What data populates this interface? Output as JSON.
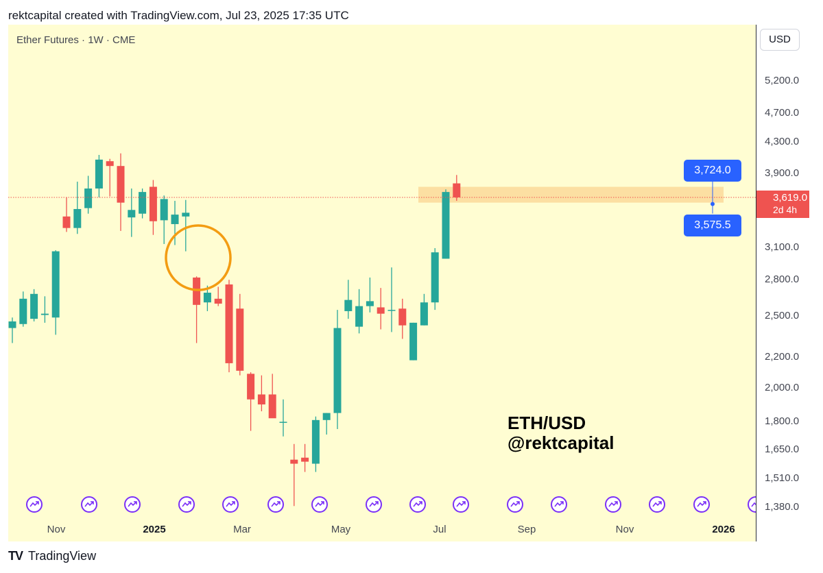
{
  "header": {
    "text": "rektcapital created with TradingView.com, Jul 23, 2025 17:35 UTC"
  },
  "symbol": {
    "text": "Ether Futures · 1W · CME"
  },
  "currency_button": {
    "label": "USD"
  },
  "price_axis": {
    "ticks": [
      "5,200.0",
      "4,700.0",
      "4,300.0",
      "3,900.0",
      "3,100.0",
      "2,800.0",
      "2,500.0",
      "2,200.0",
      "2,000.0",
      "1,800.0",
      "1,650.0",
      "1,510.0",
      "1,380.0"
    ]
  },
  "time_axis": {
    "labels": [
      "Nov",
      "2025",
      "Mar",
      "May",
      "Jul",
      "Sep",
      "Nov",
      "2026"
    ]
  },
  "last_price": {
    "price": "3,619.0",
    "countdown": "2d 4h"
  },
  "range_tags": {
    "upper": "3,724.0",
    "lower": "3,575.5"
  },
  "annotation": {
    "line1": "ETH/USD",
    "line2": "@rektcapital"
  },
  "footer": {
    "logo_mark": "TV",
    "brand": "TradingView"
  },
  "colors": {
    "up": "#26a69a",
    "down": "#ef5350",
    "background": "#fffdd2",
    "zone": "#fcd99a",
    "circle": "#f39c12",
    "marker": "#7b2ff7",
    "tag": "#2962ff"
  },
  "chart_data": {
    "type": "candlestick",
    "title": "Ether Futures · 1W · CME",
    "scale": "log",
    "ylim": [
      1310,
      5600
    ],
    "x_axis_labels": [
      "Nov",
      "2025",
      "Mar",
      "May",
      "Jul",
      "Sep",
      "Nov",
      "2026"
    ],
    "candles": [
      {
        "week": 1,
        "open": 2410,
        "high": 2490,
        "low": 2300,
        "close": 2460
      },
      {
        "week": 2,
        "open": 2440,
        "high": 2700,
        "low": 2420,
        "close": 2640
      },
      {
        "week": 3,
        "open": 2480,
        "high": 2720,
        "low": 2460,
        "close": 2680
      },
      {
        "week": 4,
        "open": 2510,
        "high": 2660,
        "low": 2450,
        "close": 2520
      },
      {
        "week": 5,
        "open": 2490,
        "high": 3070,
        "low": 2360,
        "close": 3060
      },
      {
        "week": 6,
        "open": 3410,
        "high": 3620,
        "low": 3250,
        "close": 3290
      },
      {
        "week": 7,
        "open": 3290,
        "high": 3800,
        "low": 3230,
        "close": 3490
      },
      {
        "week": 8,
        "open": 3500,
        "high": 3870,
        "low": 3440,
        "close": 3720
      },
      {
        "week": 9,
        "open": 3720,
        "high": 4130,
        "low": 3620,
        "close": 4070
      },
      {
        "week": 10,
        "open": 4050,
        "high": 4080,
        "low": 3630,
        "close": 3990
      },
      {
        "week": 11,
        "open": 3990,
        "high": 4150,
        "low": 3260,
        "close": 3560
      },
      {
        "week": 12,
        "open": 3400,
        "high": 3720,
        "low": 3200,
        "close": 3480
      },
      {
        "week": 13,
        "open": 3440,
        "high": 3720,
        "low": 3390,
        "close": 3680
      },
      {
        "week": 14,
        "open": 3740,
        "high": 3820,
        "low": 3220,
        "close": 3360
      },
      {
        "week": 15,
        "open": 3370,
        "high": 3640,
        "low": 3130,
        "close": 3600
      },
      {
        "week": 16,
        "open": 3330,
        "high": 3580,
        "low": 3120,
        "close": 3430
      },
      {
        "week": 17,
        "open": 3410,
        "high": 3590,
        "low": 3060,
        "close": 3450
      },
      {
        "week": 18,
        "open": 2820,
        "high": 2830,
        "low": 2300,
        "close": 2590
      },
      {
        "week": 19,
        "open": 2610,
        "high": 2750,
        "low": 2540,
        "close": 2690
      },
      {
        "week": 20,
        "open": 2640,
        "high": 2740,
        "low": 2580,
        "close": 2600
      },
      {
        "week": 21,
        "open": 2760,
        "high": 2800,
        "low": 2100,
        "close": 2160
      },
      {
        "week": 22,
        "open": 2560,
        "high": 2680,
        "low": 2080,
        "close": 2110
      },
      {
        "week": 23,
        "open": 2090,
        "high": 2100,
        "low": 1750,
        "close": 1930
      },
      {
        "week": 24,
        "open": 1960,
        "high": 2080,
        "low": 1860,
        "close": 1900
      },
      {
        "week": 25,
        "open": 1960,
        "high": 2090,
        "low": 1830,
        "close": 1820
      },
      {
        "week": 26,
        "open": 1800,
        "high": 1930,
        "low": 1720,
        "close": 1800
      },
      {
        "week": 27,
        "open": 1600,
        "high": 1680,
        "low": 1385,
        "close": 1580
      },
      {
        "week": 28,
        "open": 1610,
        "high": 1680,
        "low": 1540,
        "close": 1590
      },
      {
        "week": 29,
        "open": 1580,
        "high": 1830,
        "low": 1540,
        "close": 1810
      },
      {
        "week": 30,
        "open": 1810,
        "high": 1850,
        "low": 1730,
        "close": 1850
      },
      {
        "week": 31,
        "open": 1850,
        "high": 2550,
        "low": 1760,
        "close": 2410
      },
      {
        "week": 32,
        "open": 2540,
        "high": 2800,
        "low": 2480,
        "close": 2630
      },
      {
        "week": 33,
        "open": 2420,
        "high": 2720,
        "low": 2370,
        "close": 2580
      },
      {
        "week": 34,
        "open": 2580,
        "high": 2820,
        "low": 2530,
        "close": 2620
      },
      {
        "week": 35,
        "open": 2570,
        "high": 2730,
        "low": 2400,
        "close": 2520
      },
      {
        "week": 36,
        "open": 2550,
        "high": 2910,
        "low": 2380,
        "close": 2550
      },
      {
        "week": 37,
        "open": 2560,
        "high": 2640,
        "low": 2330,
        "close": 2430
      },
      {
        "week": 38,
        "open": 2180,
        "high": 2450,
        "low": 2180,
        "close": 2450
      },
      {
        "week": 39,
        "open": 2430,
        "high": 2680,
        "low": 2430,
        "close": 2610
      },
      {
        "week": 40,
        "open": 2610,
        "high": 3090,
        "low": 2550,
        "close": 3050
      },
      {
        "week": 41,
        "open": 2990,
        "high": 3710,
        "low": 2990,
        "close": 3680
      },
      {
        "week": 42,
        "open": 3780,
        "high": 3880,
        "low": 3580,
        "close": 3619
      }
    ],
    "current_price": 3619.0,
    "zone": {
      "upper": 3724.0,
      "lower": 3575.5
    },
    "annotation_text": "ETH/USD @rektcapital"
  }
}
